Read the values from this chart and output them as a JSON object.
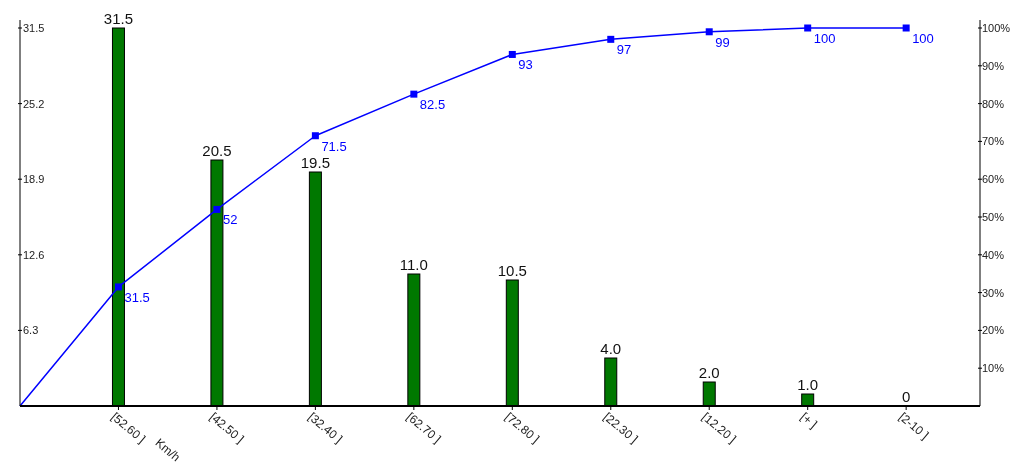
{
  "chart_data": {
    "type": "bar",
    "categories": [
      null,
      "[52.60 ]",
      "[42.50 ]",
      "[32.40 ]",
      "[62.70 ]",
      "[72.80 ]",
      "[22.30 ]",
      "[12.20 ]",
      "[+ ]",
      "[2-10 ]"
    ],
    "xlabel": "Km/h",
    "series": [
      {
        "color": "#007800",
        "values": [
          null,
          31.5,
          20.5,
          19.5,
          11.0,
          10.5,
          4.0,
          2.0,
          1.0,
          0
        ],
        "value_labels": [
          null,
          "31.5",
          "20.5",
          "19.5",
          "11.0",
          "10.5",
          "4.0",
          "2.0",
          "1.0",
          "0"
        ]
      },
      {
        "type": "line",
        "axis": "y2",
        "color": "#0000ff",
        "values": [
          0,
          31.5,
          52,
          71.5,
          82.5,
          93,
          97,
          99,
          100,
          100
        ],
        "value_labels": [
          null,
          "31.5",
          "52",
          "71.5",
          "82.5",
          "93",
          "97",
          "99",
          "100",
          "100"
        ]
      }
    ],
    "ylim": [
      0,
      31.5
    ],
    "yticks": [
      6.3,
      12.6,
      18.9,
      25.2,
      31.5
    ],
    "y2lim": [
      0,
      100
    ],
    "y2ticks": [
      {
        "value": 10,
        "label": "10%"
      },
      {
        "value": 20,
        "label": "20%"
      },
      {
        "value": 30,
        "label": "30%"
      },
      {
        "value": 40,
        "label": "40%"
      },
      {
        "value": 50,
        "label": "50%"
      },
      {
        "value": 60,
        "label": "60%"
      },
      {
        "value": 70,
        "label": "70%"
      },
      {
        "value": 80,
        "label": "80%"
      },
      {
        "value": 90,
        "label": "90%"
      },
      {
        "value": 100,
        "label": "100%"
      }
    ],
    "marker": "square",
    "grid": false
  }
}
